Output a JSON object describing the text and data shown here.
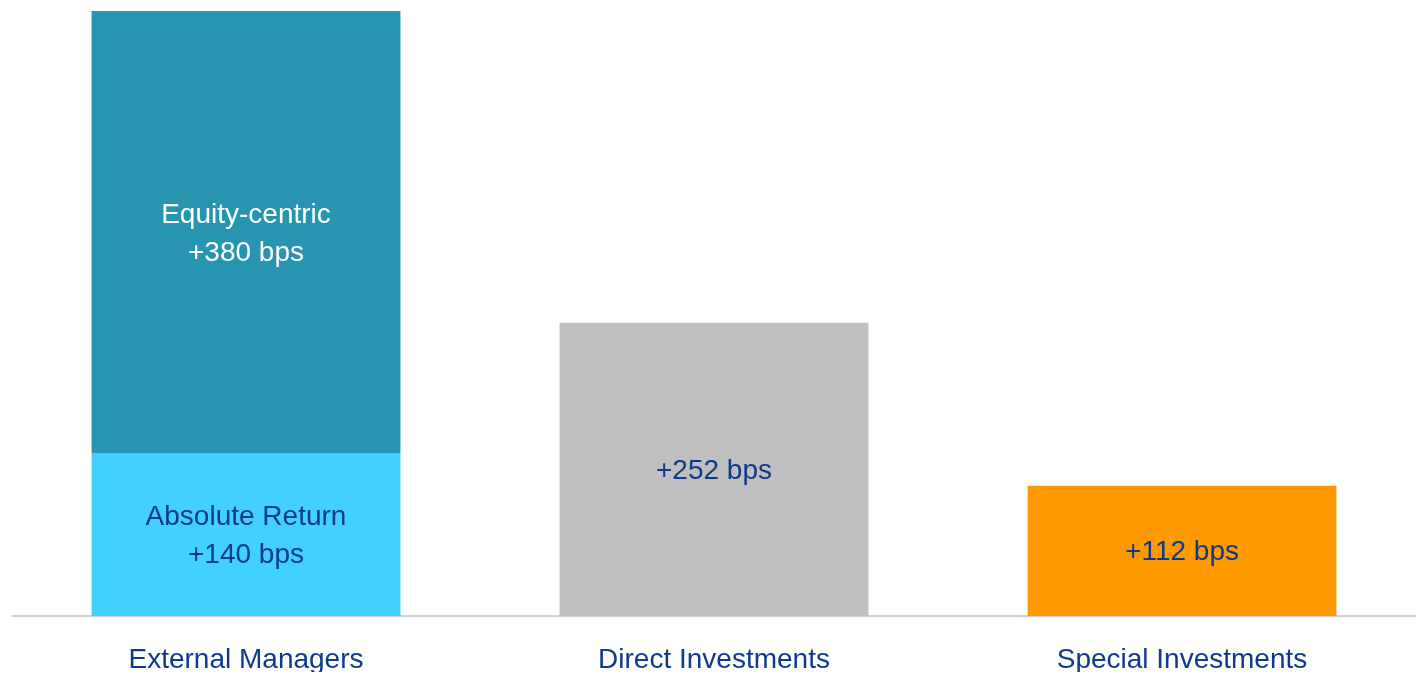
{
  "chart_data": {
    "type": "bar",
    "stacked": true,
    "categories": [
      "External Managers",
      "Direct Investments",
      "Special Investments"
    ],
    "ylim": [
      0,
      520
    ],
    "legend": false,
    "series": [
      {
        "name": "Absolute Return",
        "color": "#42d0ff",
        "values": [
          140,
          null,
          null
        ],
        "value_labels": [
          "+140 bps",
          null,
          null
        ]
      },
      {
        "name": "Equity-centric",
        "color": "#2795b0",
        "values": [
          380,
          null,
          null
        ],
        "value_labels": [
          "+380 bps",
          null,
          null
        ]
      },
      {
        "color": "#bfbfbf",
        "values": [
          null,
          252,
          null
        ],
        "value_labels": [
          null,
          "+252 bps",
          null
        ]
      },
      {
        "color": "#ff9900",
        "values": [
          null,
          null,
          112
        ],
        "value_labels": [
          null,
          null,
          "+112 bps"
        ]
      }
    ]
  }
}
